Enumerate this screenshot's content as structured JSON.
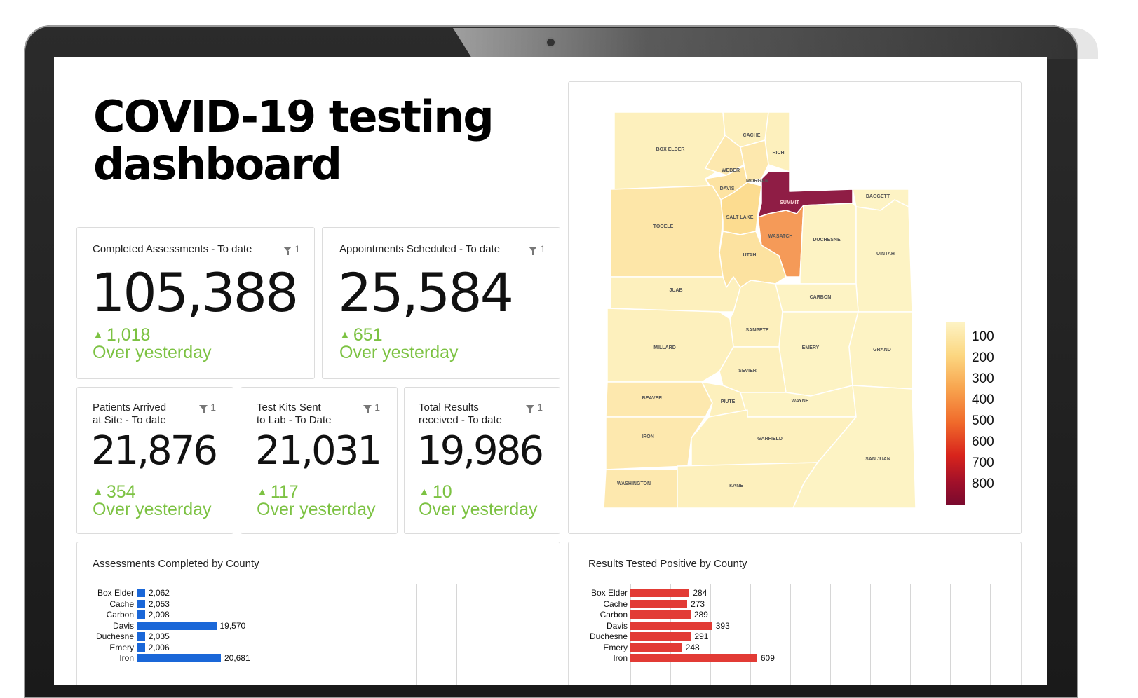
{
  "title_line1": "COVID-19 testing",
  "title_line2": "dashboard",
  "colors": {
    "increase": "#7cc242",
    "assessments_bar": "#1a67d8",
    "positive_bar": "#e23b35"
  },
  "cards": [
    {
      "label": "Completed Assessments - To date",
      "filter_count": "1",
      "value": "105,388",
      "delta": "1,018",
      "delta_caption": "Over yesterday"
    },
    {
      "label": "Appointments Scheduled - To date",
      "filter_count": "1",
      "value": "25,584",
      "delta": "651",
      "delta_caption": "Over yesterday"
    },
    {
      "label_line1": "Patients Arrived",
      "label_line2": "at Site - To date",
      "filter_count": "1",
      "value": "21,876",
      "delta": "354",
      "delta_caption": "Over yesterday"
    },
    {
      "label_line1": "Test Kits Sent",
      "label_line2": "to Lab - To Date",
      "filter_count": "1",
      "value": "21,031",
      "delta": "117",
      "delta_caption": "Over yesterday"
    },
    {
      "label_line1": "Total Results",
      "label_line2": "received - To date",
      "filter_count": "1",
      "value": "19,986",
      "delta": "10",
      "delta_caption": "Over yesterday"
    }
  ],
  "map": {
    "counties": [
      "BOX ELDER",
      "CACHE",
      "RICH",
      "WEBER",
      "MORGAN",
      "DAVIS",
      "DAGGETT",
      "SUMMIT",
      "TOOELE",
      "SALT LAKE",
      "WASATCH",
      "DUCHESNE",
      "UINTAH",
      "UTAH",
      "JUAB",
      "CARBON",
      "SANPETE",
      "MILLARD",
      "EMERY",
      "GRAND",
      "SEVIER",
      "BEAVER",
      "PIUTE",
      "WAYNE",
      "IRON",
      "GARFIELD",
      "SAN JUAN",
      "WASHINGTON",
      "KANE"
    ],
    "legend": [
      "100",
      "200",
      "300",
      "400",
      "500",
      "600",
      "700",
      "800"
    ]
  },
  "assessments_chart": {
    "title": "Assessments Completed by County",
    "rows": [
      {
        "county": "Box Elder",
        "label": "2,062",
        "value": 2062
      },
      {
        "county": "Cache",
        "label": "2,053",
        "value": 2053
      },
      {
        "county": "Carbon",
        "label": "2,008",
        "value": 2008
      },
      {
        "county": "Davis",
        "label": "19,570",
        "value": 19570
      },
      {
        "county": "Duchesne",
        "label": "2,035",
        "value": 2035
      },
      {
        "county": "Emery",
        "label": "2,006",
        "value": 2006
      },
      {
        "county": "Iron",
        "label": "20,681",
        "value": 20681
      }
    ]
  },
  "positive_chart": {
    "title": "Results Tested Positive by County",
    "rows": [
      {
        "county": "Box Elder",
        "label": "284",
        "value": 284
      },
      {
        "county": "Cache",
        "label": "273",
        "value": 273
      },
      {
        "county": "Carbon",
        "label": "289",
        "value": 289
      },
      {
        "county": "Davis",
        "label": "393",
        "value": 393
      },
      {
        "county": "Duchesne",
        "label": "291",
        "value": 291
      },
      {
        "county": "Emery",
        "label": "248",
        "value": 248
      },
      {
        "county": "Iron",
        "label": "609",
        "value": 609
      }
    ]
  }
}
